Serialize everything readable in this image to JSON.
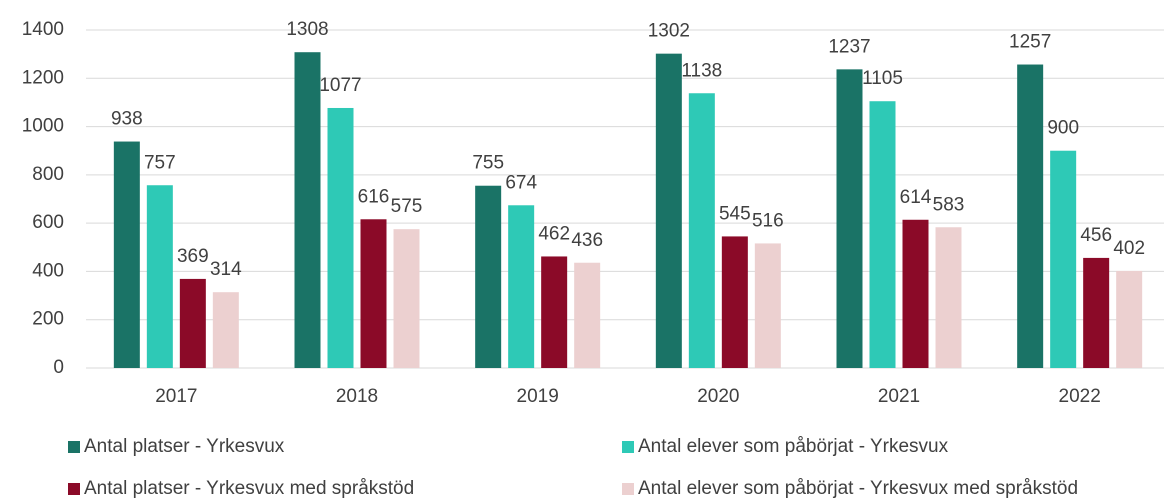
{
  "chart_data": {
    "type": "bar",
    "categories": [
      "2017",
      "2018",
      "2019",
      "2020",
      "2021",
      "2022"
    ],
    "series": [
      {
        "name": "Antal platser - Yrkesvux",
        "color": "#1a7366",
        "values": [
          938,
          1308,
          755,
          1302,
          1237,
          1257
        ]
      },
      {
        "name": "Antal elever som påbörjat - Yrkesvux",
        "color": "#2ec9b6",
        "values": [
          757,
          1077,
          674,
          1138,
          1105,
          900
        ]
      },
      {
        "name": "Antal platser - Yrkesvux med språkstöd",
        "color": "#8b0a28",
        "values": [
          369,
          616,
          462,
          545,
          614,
          456
        ]
      },
      {
        "name": "Antal elever som påbörjat - Yrkesvux med språkstöd",
        "color": "#ecd0d0",
        "values": [
          314,
          575,
          436,
          516,
          583,
          402
        ]
      }
    ],
    "ylim": [
      0,
      1400
    ],
    "yticks": [
      0,
      200,
      400,
      600,
      800,
      1000,
      1200,
      1400
    ],
    "grid": true,
    "legend": "bottom"
  }
}
